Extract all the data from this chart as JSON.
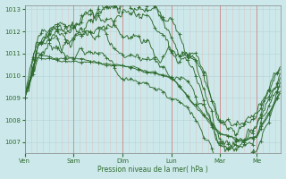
{
  "bg_color": "#cce8ea",
  "grid_color_v": "#e8b0b0",
  "grid_color_h": "#b8d8dc",
  "line_color": "#2d6a2d",
  "xlabel": "Pression niveau de la mer( hPa )",
  "ylim": [
    1006.5,
    1013.2
  ],
  "yticks": [
    1007,
    1008,
    1009,
    1010,
    1011,
    1012,
    1013
  ],
  "xlim": [
    0,
    252
  ],
  "days": [
    "Ven",
    "Sam",
    "Dim",
    "Lun",
    "Mar",
    "Me"
  ],
  "day_positions": [
    0,
    48,
    96,
    144,
    192,
    228
  ],
  "n": 252
}
